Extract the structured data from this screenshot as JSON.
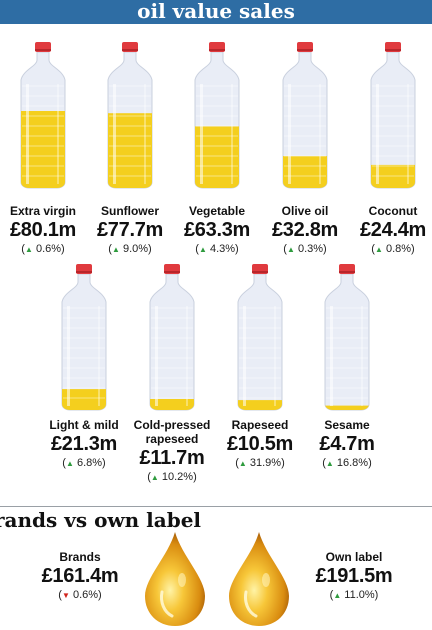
{
  "header": {
    "title": "oil value sales"
  },
  "colors": {
    "header_bg": "#2e6da4",
    "oil": "#f4cf1e",
    "cap": "#e03a3e",
    "up_arrow": "#2e9b3e",
    "down_arrow": "#d0241c",
    "drop_gold": "#e3a21a"
  },
  "chart_data": [
    {
      "type": "bar",
      "categories": [
        "Extra virgin",
        "Sunflower",
        "Vegetable",
        "Olive oil",
        "Coconut",
        "Light & mild",
        "Cold-pressed rapeseed",
        "Rapeseed",
        "Sesame"
      ],
      "values": [
        80.1,
        77.7,
        63.3,
        32.8,
        24.4,
        21.3,
        11.7,
        10.5,
        4.7
      ],
      "value_labels": [
        "£80.1m",
        "£77.7m",
        "£63.3m",
        "£32.8m",
        "£24.4m",
        "£21.3m",
        "£11.7m",
        "£10.5m",
        "£4.7m"
      ],
      "changes": [
        "(▲ 0.6%)",
        "(▲ 9.0%)",
        "(▲ 4.3%)",
        "(▲ 0.3%)",
        "(▲ 0.8%)",
        "(▲ 6.8%)",
        "(▲ 10.2%)",
        "(▲ 31.9%)",
        "(▲ 16.8%)"
      ],
      "change_values": [
        0.6,
        9.0,
        4.3,
        0.3,
        0.8,
        6.8,
        10.2,
        31.9,
        16.8
      ],
      "ylim": [
        0,
        80.1
      ]
    },
    {
      "type": "bar",
      "categories": [
        "Brands",
        "Own label"
      ],
      "values": [
        161.4,
        191.5
      ],
      "value_labels": [
        "£161.4m",
        "£191.5m"
      ],
      "changes": [
        "(▼ 0.6%)",
        "(▲ 11.0%)"
      ],
      "change_values": [
        -0.6,
        11.0
      ]
    }
  ],
  "bottles": [
    {
      "label": "Extra virgin",
      "value": "£80.1m",
      "change_dir": "up",
      "change": "0.6%"
    },
    {
      "label": "Sunflower",
      "value": "£77.7m",
      "change_dir": "up",
      "change": "9.0%"
    },
    {
      "label": "Vegetable",
      "value": "£63.3m",
      "change_dir": "up",
      "change": "4.3%"
    },
    {
      "label": "Olive oil",
      "value": "£32.8m",
      "change_dir": "up",
      "change": "0.3%"
    },
    {
      "label": "Coconut",
      "value": "£24.4m",
      "change_dir": "up",
      "change": "0.8%"
    },
    {
      "label": "Light & mild",
      "value": "£21.3m",
      "change_dir": "up",
      "change": "6.8%"
    },
    {
      "label_lines": [
        "Cold-pressed",
        "rapeseed"
      ],
      "value": "£11.7m",
      "change_dir": "up",
      "change": "10.2%"
    },
    {
      "label": "Rapeseed",
      "value": "£10.5m",
      "change_dir": "up",
      "change": "31.9%"
    },
    {
      "label": "Sesame",
      "value": "£4.7m",
      "change_dir": "up",
      "change": "16.8%"
    }
  ],
  "comparison": {
    "title": "rands vs own label",
    "brands": {
      "label": "Brands",
      "value": "£161.4m",
      "change_dir": "down",
      "change": "0.6%"
    },
    "own_label": {
      "label": "Own label",
      "value": "£191.5m",
      "change_dir": "up",
      "change": "11.0%"
    }
  },
  "fill_fractions": [
    0.7,
    0.68,
    0.56,
    0.29,
    0.21,
    0.19,
    0.1,
    0.09,
    0.04
  ]
}
